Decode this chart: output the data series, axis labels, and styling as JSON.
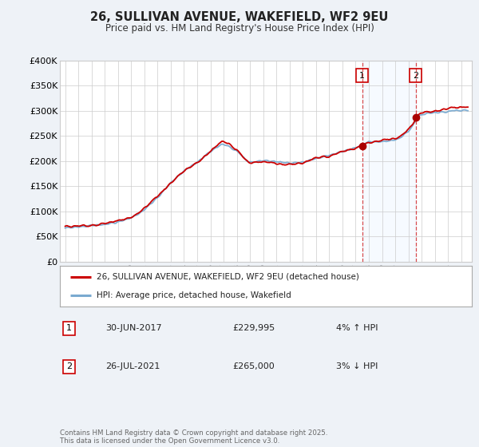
{
  "title": "26, SULLIVAN AVENUE, WAKEFIELD, WF2 9EU",
  "subtitle": "Price paid vs. HM Land Registry's House Price Index (HPI)",
  "ylim": [
    0,
    400000
  ],
  "yticks": [
    0,
    50000,
    100000,
    150000,
    200000,
    250000,
    300000,
    350000,
    400000
  ],
  "ytick_labels": [
    "£0",
    "£50K",
    "£100K",
    "£150K",
    "£200K",
    "£250K",
    "£300K",
    "£350K",
    "£400K"
  ],
  "xlim_start": 1994.6,
  "xlim_end": 2025.8,
  "line_color_property": "#cc0000",
  "line_color_hpi": "#7aaad0",
  "shade_color": "#ddeeff",
  "transaction1_x": 2017.5,
  "transaction1_y": 229995,
  "transaction2_x": 2021.56,
  "transaction2_y": 265000,
  "legend_label_property": "26, SULLIVAN AVENUE, WAKEFIELD, WF2 9EU (detached house)",
  "legend_label_hpi": "HPI: Average price, detached house, Wakefield",
  "transaction1_date": "30-JUN-2017",
  "transaction1_price": "£229,995",
  "transaction1_hpi_text": "4% ↑ HPI",
  "transaction2_date": "26-JUL-2021",
  "transaction2_price": "£265,000",
  "transaction2_hpi_text": "3% ↓ HPI",
  "footer": "Contains HM Land Registry data © Crown copyright and database right 2025.\nThis data is licensed under the Open Government Licence v3.0.",
  "bg_color": "#eef2f7",
  "plot_bg": "#ffffff",
  "grid_color": "#cccccc",
  "box_color": "#cc0000"
}
